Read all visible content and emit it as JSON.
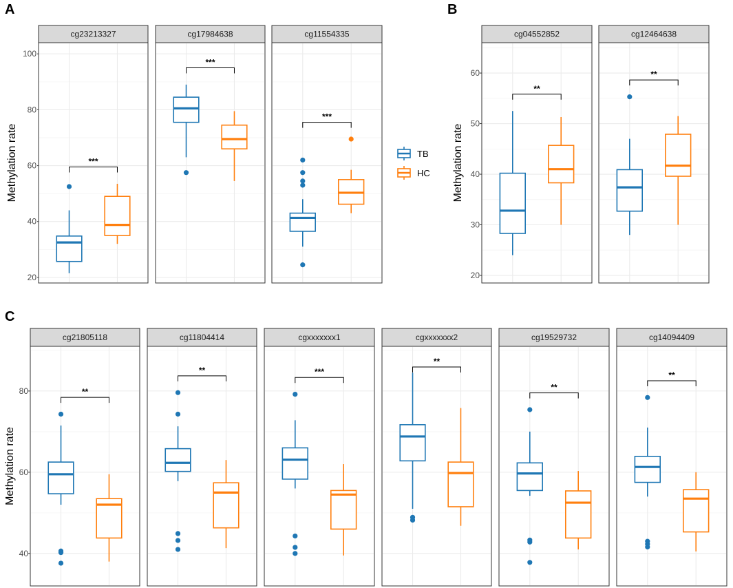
{
  "colors": {
    "TB": "#1f77b4",
    "HC": "#ff7f0e"
  },
  "legend": {
    "items": [
      {
        "label": "TB",
        "color": "#1f77b4"
      },
      {
        "label": "HC",
        "color": "#ff7f0e"
      }
    ]
  },
  "chart_data": [
    {
      "type": "box",
      "panel": "A",
      "ylabel": "Methylation rate",
      "ylim": [
        18,
        104
      ],
      "yticks": [
        20,
        40,
        60,
        80,
        100
      ],
      "groups": [
        "TB",
        "HC"
      ],
      "facets": [
        {
          "title": "cg23213327",
          "signif": "***",
          "boxes": [
            {
              "group": "TB",
              "min": 21.5,
              "q1": 25.7,
              "median": 32.5,
              "q3": 34.8,
              "max": 44.0,
              "outliers": [
                52.5
              ]
            },
            {
              "group": "HC",
              "min": 32.0,
              "q1": 35.0,
              "median": 38.8,
              "q3": 49.0,
              "max": 53.5,
              "outliers": []
            }
          ]
        },
        {
          "title": "cg17984638",
          "signif": "***",
          "boxes": [
            {
              "group": "TB",
              "min": 63.0,
              "q1": 75.5,
              "median": 80.5,
              "q3": 84.5,
              "max": 89.0,
              "outliers": [
                57.5
              ]
            },
            {
              "group": "HC",
              "min": 54.5,
              "q1": 66.0,
              "median": 69.5,
              "q3": 74.5,
              "max": 79.5,
              "outliers": []
            }
          ]
        },
        {
          "title": "cg11554335",
          "signif": "***",
          "boxes": [
            {
              "group": "TB",
              "min": 31.0,
              "q1": 36.5,
              "median": 41.3,
              "q3": 43.0,
              "max": 48.0,
              "outliers": [
                24.5,
                53.0,
                54.5,
                57.5,
                62.0
              ]
            },
            {
              "group": "HC",
              "min": 43.0,
              "q1": 46.2,
              "median": 50.3,
              "q3": 55.0,
              "max": 58.5,
              "outliers": [
                69.5
              ]
            }
          ]
        }
      ]
    },
    {
      "type": "box",
      "panel": "B",
      "ylabel": "Methylation rate",
      "ylim": [
        18.5,
        66
      ],
      "yticks": [
        20,
        30,
        40,
        50,
        60
      ],
      "groups": [
        "TB",
        "HC"
      ],
      "facets": [
        {
          "title": "cg04552852",
          "signif": "**",
          "boxes": [
            {
              "group": "TB",
              "min": 24.0,
              "q1": 28.3,
              "median": 32.8,
              "q3": 40.2,
              "max": 52.5,
              "outliers": []
            },
            {
              "group": "HC",
              "min": 30.0,
              "q1": 38.3,
              "median": 41.0,
              "q3": 45.7,
              "max": 51.3,
              "outliers": []
            }
          ]
        },
        {
          "title": "cg12464638",
          "signif": "**",
          "boxes": [
            {
              "group": "TB",
              "min": 28.0,
              "q1": 32.7,
              "median": 37.4,
              "q3": 40.9,
              "max": 47.0,
              "outliers": [
                55.3
              ]
            },
            {
              "group": "HC",
              "min": 30.0,
              "q1": 39.6,
              "median": 41.7,
              "q3": 47.9,
              "max": 51.5,
              "outliers": []
            }
          ]
        }
      ]
    },
    {
      "type": "box",
      "panel": "C",
      "ylabel": "Methylation rate",
      "ylim": [
        32,
        91
      ],
      "yticks": [
        40,
        60,
        80
      ],
      "groups": [
        "TB",
        "HC"
      ],
      "facets": [
        {
          "title": "cg21805118",
          "signif": "**",
          "boxes": [
            {
              "group": "TB",
              "min": 52.0,
              "q1": 54.7,
              "median": 59.5,
              "q3": 62.5,
              "max": 71.5,
              "outliers": [
                37.6,
                40.2,
                40.6,
                74.3
              ]
            },
            {
              "group": "HC",
              "min": 38.0,
              "q1": 43.8,
              "median": 52.0,
              "q3": 53.5,
              "max": 59.5,
              "outliers": []
            }
          ]
        },
        {
          "title": "cg11804414",
          "signif": "**",
          "boxes": [
            {
              "group": "TB",
              "min": 57.8,
              "q1": 60.2,
              "median": 62.3,
              "q3": 65.8,
              "max": 71.3,
              "outliers": [
                41.0,
                43.2,
                44.9,
                74.3,
                79.6
              ]
            },
            {
              "group": "HC",
              "min": 41.3,
              "q1": 46.3,
              "median": 55.0,
              "q3": 57.4,
              "max": 63.0,
              "outliers": []
            }
          ]
        },
        {
          "title": "cgxxxxxxx1",
          "signif": "***",
          "boxes": [
            {
              "group": "TB",
              "min": 56.0,
              "q1": 58.3,
              "median": 63.1,
              "q3": 66.0,
              "max": 72.8,
              "outliers": [
                40.0,
                41.5,
                44.3,
                79.2
              ]
            },
            {
              "group": "HC",
              "min": 39.5,
              "q1": 46.0,
              "median": 54.5,
              "q3": 55.5,
              "max": 62.0,
              "outliers": []
            }
          ]
        },
        {
          "title": "cgxxxxxxx2",
          "signif": "**",
          "boxes": [
            {
              "group": "TB",
              "min": 51.0,
              "q1": 62.8,
              "median": 68.8,
              "q3": 71.7,
              "max": 84.5,
              "outliers": [
                48.2,
                48.9
              ]
            },
            {
              "group": "HC",
              "min": 46.8,
              "q1": 51.5,
              "median": 59.8,
              "q3": 62.5,
              "max": 75.8,
              "outliers": []
            }
          ]
        },
        {
          "title": "cg19529732",
          "signif": "**",
          "boxes": [
            {
              "group": "TB",
              "min": 54.2,
              "q1": 55.5,
              "median": 59.7,
              "q3": 62.3,
              "max": 70.0,
              "outliers": [
                37.8,
                42.8,
                43.3,
                75.4
              ]
            },
            {
              "group": "HC",
              "min": 41.0,
              "q1": 43.8,
              "median": 52.5,
              "q3": 55.4,
              "max": 60.3,
              "outliers": []
            }
          ]
        },
        {
          "title": "cg14094409",
          "signif": "**",
          "boxes": [
            {
              "group": "TB",
              "min": 54.0,
              "q1": 57.5,
              "median": 61.3,
              "q3": 63.9,
              "max": 71.0,
              "outliers": [
                41.6,
                42.3,
                43.0,
                78.4
              ]
            },
            {
              "group": "HC",
              "min": 40.5,
              "q1": 45.3,
              "median": 53.5,
              "q3": 55.7,
              "max": 60.0,
              "outliers": []
            }
          ]
        }
      ]
    }
  ]
}
